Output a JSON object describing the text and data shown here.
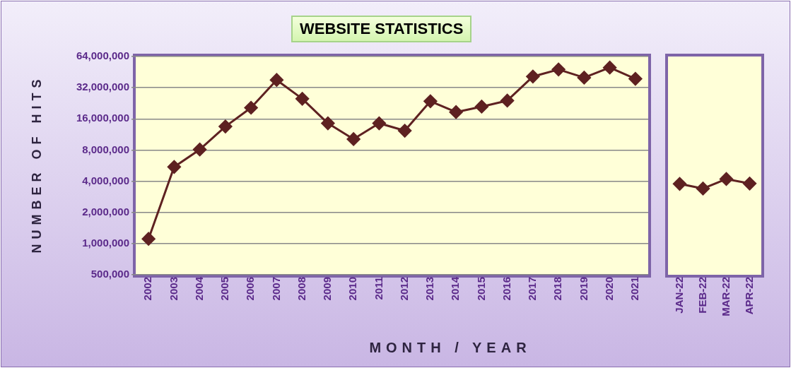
{
  "chart_data": [
    {
      "type": "line",
      "title": "WEBSITE STATISTICS",
      "xlabel": "MONTH / YEAR",
      "ylabel": "NUMBER OF HITS",
      "categories": [
        "2002",
        "2003",
        "2004",
        "2005",
        "2006",
        "2007",
        "2008",
        "2009",
        "2010",
        "2011",
        "2012",
        "2013",
        "2014",
        "2015",
        "2016",
        "2017",
        "2018",
        "2019",
        "2020",
        "2021"
      ],
      "series": [
        {
          "color": "#5e2121",
          "values": [
            1110000,
            5500000,
            8100000,
            13500000,
            20500000,
            38000000,
            25000000,
            14500000,
            10200000,
            14500000,
            12300000,
            23700000,
            18600000,
            21000000,
            24000000,
            41000000,
            48000000,
            40000000,
            50000000,
            39000000
          ]
        }
      ],
      "log": true,
      "ylim": [
        500000,
        64000000
      ],
      "yticks": [
        {
          "value": 500000,
          "label": "500,000"
        },
        {
          "value": 1000000,
          "label": "1,000,000"
        },
        {
          "value": 2000000,
          "label": "2,000,000"
        },
        {
          "value": 4000000,
          "label": "4,000,000"
        },
        {
          "value": 8000000,
          "label": "8,000,000"
        },
        {
          "value": 16000000,
          "label": "16,000,000"
        },
        {
          "value": 32000000,
          "label": "32,000,000"
        },
        {
          "value": 64000000,
          "label": "64,000,000"
        }
      ],
      "grid": "y",
      "legend": false,
      "marker": "diamond",
      "line_style": "solid"
    },
    {
      "type": "line",
      "categories": [
        "JAN-22",
        "FEB-22",
        "MAR-22",
        "APR-22"
      ],
      "series": [
        {
          "color": "#5e2121",
          "values": [
            3770000,
            3400000,
            4200000,
            3800000
          ]
        }
      ],
      "log": true,
      "ylim": [
        500000,
        64000000
      ],
      "yticks": [
        {
          "value": 500000,
          "label": null
        },
        {
          "value": 1000000,
          "label": null
        },
        {
          "value": 2000000,
          "label": null
        },
        {
          "value": 4000000,
          "label": null
        },
        {
          "value": 8000000,
          "label": null
        },
        {
          "value": 16000000,
          "label": null
        },
        {
          "value": 32000000,
          "label": null
        },
        {
          "value": 64000000,
          "label": null
        }
      ],
      "tick_labels": "x",
      "grid": "y",
      "legend": false,
      "marker": "diamond",
      "line_style": "solid"
    }
  ]
}
